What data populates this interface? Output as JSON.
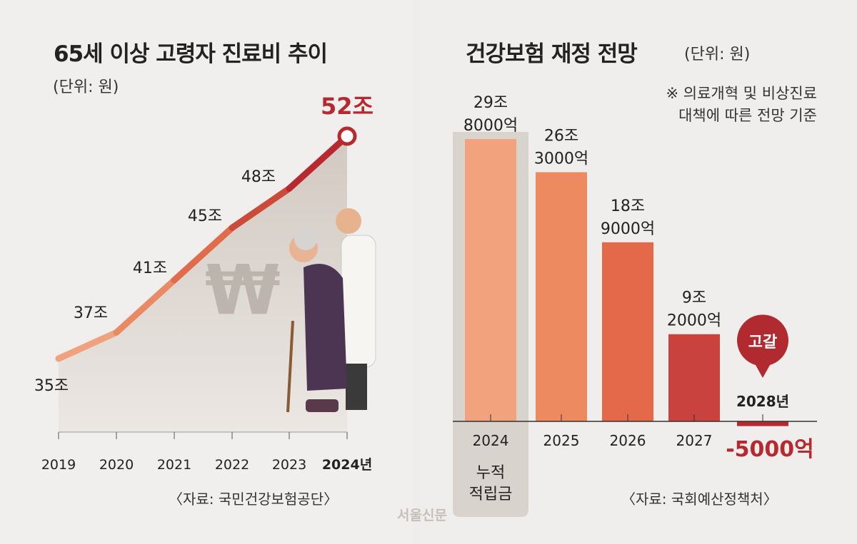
{
  "left": {
    "title": "65세 이상 고령자 진료비 추이",
    "unit": "(단위: 원)",
    "source": "〈자료: 국민건강보험공단〉",
    "won_symbol": "₩",
    "colors": {
      "line_start": "#f0a27e",
      "line_end": "#b8292f",
      "highlight": "#b8292f",
      "area": "#d9d2cb"
    }
  },
  "right": {
    "title": "건강보험 재정 전망",
    "unit": "(단위: 원)",
    "note_lines": [
      "※ 의료개혁 및 비상진료",
      "대책에 따른 전망 기준"
    ],
    "highlight_label_lines": [
      "누적",
      "적립금"
    ],
    "depletion_badge": "고갈",
    "depletion_year": "2028년",
    "source": "〈자료: 국회예산정책처〉",
    "colors": {
      "bar_light": "#f2a07a",
      "bar_dark": "#c0393a",
      "negative": "#b8292f"
    }
  },
  "watermark": "서울신문",
  "chart_data": [
    {
      "type": "line",
      "title": "65세 이상 고령자 진료비 추이",
      "unit": "조원",
      "categories": [
        "2019",
        "2020",
        "2021",
        "2022",
        "2023",
        "2024년"
      ],
      "values": [
        35,
        37,
        41,
        45,
        48,
        52
      ],
      "data_labels": [
        "35조",
        "37조",
        "41조",
        "45조",
        "48조",
        "52조"
      ],
      "ylim": [
        30,
        52
      ]
    },
    {
      "type": "bar",
      "title": "건강보험 재정 전망",
      "unit": "억원",
      "categories": [
        "2024",
        "2025",
        "2026",
        "2027",
        "2028"
      ],
      "values": [
        298000,
        263000,
        189000,
        92000,
        -5000
      ],
      "data_labels": [
        [
          "29조",
          "8000억"
        ],
        [
          "26조",
          "3000억"
        ],
        [
          "18조",
          "9000억"
        ],
        [
          "9조",
          "2000억"
        ],
        [
          "-5000억"
        ]
      ]
    }
  ]
}
